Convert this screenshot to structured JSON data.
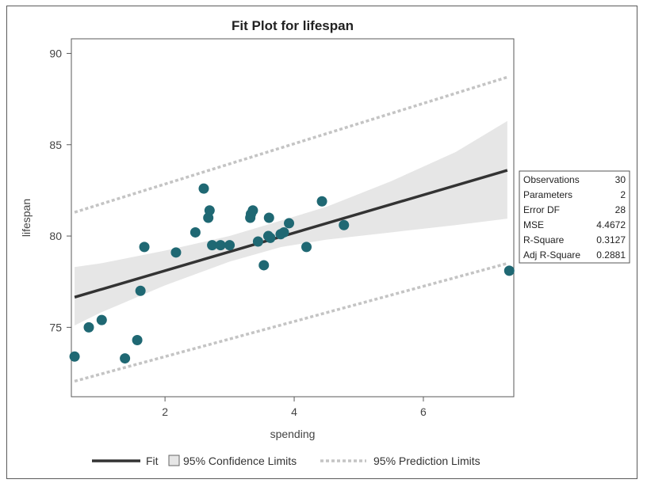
{
  "chart_data": {
    "type": "scatter",
    "title": "Fit Plot for lifespan",
    "xlabel": "spending",
    "ylabel": "lifespan",
    "xlim": [
      0.55,
      7.4
    ],
    "ylim": [
      71.2,
      90.8
    ],
    "xticks": [
      2,
      4,
      6
    ],
    "yticks": [
      75,
      80,
      85,
      90
    ],
    "points": [
      {
        "x": 0.6,
        "y": 73.4
      },
      {
        "x": 0.82,
        "y": 75.0
      },
      {
        "x": 1.02,
        "y": 75.4
      },
      {
        "x": 1.38,
        "y": 73.3
      },
      {
        "x": 1.57,
        "y": 74.3
      },
      {
        "x": 1.62,
        "y": 77.0
      },
      {
        "x": 1.68,
        "y": 79.4
      },
      {
        "x": 2.17,
        "y": 79.1
      },
      {
        "x": 2.47,
        "y": 80.2
      },
      {
        "x": 2.6,
        "y": 82.6
      },
      {
        "x": 2.67,
        "y": 81.0
      },
      {
        "x": 2.69,
        "y": 81.4
      },
      {
        "x": 2.73,
        "y": 79.5
      },
      {
        "x": 2.86,
        "y": 79.5
      },
      {
        "x": 3.0,
        "y": 79.5
      },
      {
        "x": 3.32,
        "y": 81.0
      },
      {
        "x": 3.33,
        "y": 81.2
      },
      {
        "x": 3.36,
        "y": 81.4
      },
      {
        "x": 3.44,
        "y": 79.7
      },
      {
        "x": 3.53,
        "y": 78.4
      },
      {
        "x": 3.6,
        "y": 80.0
      },
      {
        "x": 3.61,
        "y": 81.0
      },
      {
        "x": 3.63,
        "y": 79.9
      },
      {
        "x": 3.79,
        "y": 80.1
      },
      {
        "x": 3.84,
        "y": 80.2
      },
      {
        "x": 3.92,
        "y": 80.7
      },
      {
        "x": 4.19,
        "y": 79.4
      },
      {
        "x": 4.43,
        "y": 81.9
      },
      {
        "x": 4.77,
        "y": 80.6
      },
      {
        "x": 7.33,
        "y": 78.1
      }
    ],
    "fit": {
      "x": [
        0.6,
        7.3
      ],
      "y": [
        76.65,
        83.6
      ]
    },
    "confidence_band": {
      "x": [
        0.6,
        1.0,
        2.0,
        3.0,
        3.8,
        4.5,
        5.5,
        6.5,
        7.3
      ],
      "lower": [
        75.1,
        75.8,
        77.3,
        78.6,
        79.4,
        79.8,
        80.2,
        80.6,
        80.95
      ],
      "upper": [
        78.3,
        78.5,
        79.2,
        80.0,
        80.85,
        81.6,
        83.0,
        84.6,
        86.3
      ]
    },
    "prediction_lower": {
      "x": [
        0.6,
        7.3
      ],
      "y": [
        72.05,
        78.5
      ]
    },
    "prediction_upper": {
      "x": [
        0.6,
        7.3
      ],
      "y": [
        81.3,
        88.7
      ]
    },
    "colors": {
      "points": "#1f6873",
      "fit": "#333333",
      "band": "#e6e6e6",
      "prediction": "#c4c4c4"
    },
    "grid": false,
    "legend_position": "bottom",
    "legend": {
      "fit": "Fit",
      "confidence": "95% Confidence Limits",
      "prediction": "95% Prediction Limits"
    },
    "stats_table": [
      {
        "label": "Observations",
        "value": "30"
      },
      {
        "label": "Parameters",
        "value": "2"
      },
      {
        "label": "Error DF",
        "value": "28"
      },
      {
        "label": "MSE",
        "value": "4.4672"
      },
      {
        "label": "R-Square",
        "value": "0.3127"
      },
      {
        "label": "Adj R-Square",
        "value": "0.2881"
      }
    ]
  }
}
